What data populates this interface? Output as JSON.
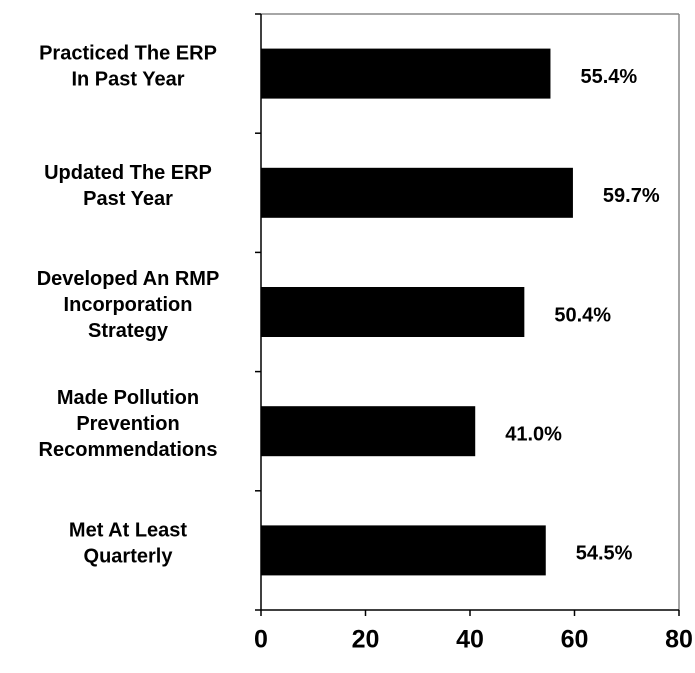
{
  "chart_data": {
    "type": "bar",
    "orientation": "horizontal",
    "categories": [
      "Practiced The ERP\nIn Past Year",
      "Updated The ERP\nPast Year",
      "Developed An RMP\nIncorporation\nStrategy",
      "Made Pollution\nPrevention\nRecommendations",
      "Met At Least\nQuarterly"
    ],
    "values": [
      55.4,
      59.7,
      50.4,
      41.0,
      54.5
    ],
    "value_labels": [
      "55.4%",
      "59.7%",
      "50.4%",
      "41.0%",
      "54.5%"
    ],
    "color": "#000000",
    "xlim": [
      0,
      80
    ],
    "xticks": [
      0,
      20,
      40,
      60,
      80
    ]
  }
}
